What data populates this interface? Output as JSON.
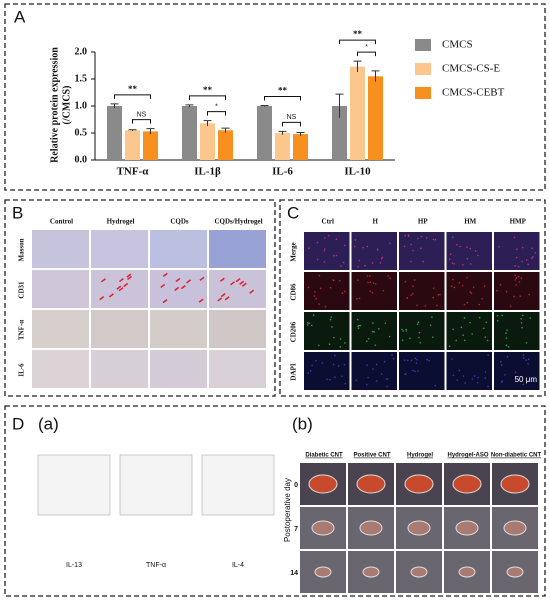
{
  "chart_data": {
    "type": "bar",
    "panel_label": "A",
    "y_label": [
      "Relative protein expression",
      "(/CMCS)"
    ],
    "categories": [
      "TNF-α",
      "IL-1β",
      "IL-6",
      "IL-10"
    ],
    "series": [
      {
        "name": "CMCS",
        "color": "#8a8a8a",
        "values": [
          1.0,
          1.0,
          1.0,
          1.0
        ],
        "errors": [
          0.04,
          0.02,
          0.01,
          0.22
        ]
      },
      {
        "name": "CMCS-CS-E",
        "color": "#fbc78c",
        "values": [
          0.55,
          0.68,
          0.5,
          1.73
        ],
        "errors": [
          0.01,
          0.05,
          0.03,
          0.1
        ]
      },
      {
        "name": "CMCS-CEBT",
        "color": "#f7901e",
        "values": [
          0.53,
          0.55,
          0.48,
          1.55
        ],
        "errors": [
          0.05,
          0.04,
          0.03,
          0.1
        ]
      }
    ],
    "ylim": [
      0,
      2.0
    ],
    "yticks": [
      {
        "value": 0,
        "label": "0.0"
      },
      {
        "value": 0.5,
        "label": "0.5"
      },
      {
        "value": 1,
        "label": "1.0"
      },
      {
        "value": 1.5,
        "label": "1.5"
      },
      {
        "value": 2,
        "label": "2.0"
      }
    ],
    "significance": [
      [
        "**",
        "NS"
      ],
      [
        "**",
        "*"
      ],
      [
        "**",
        "NS"
      ],
      [
        "**",
        "*"
      ]
    ]
  },
  "panel_b": {
    "label": "B",
    "columns": [
      "Control",
      "Hydrogel",
      "CQDs",
      "CQDs/Hydrogel"
    ],
    "rows": [
      "Masson",
      "CD31",
      "TNF-α",
      "IL-6"
    ]
  },
  "panel_c": {
    "label": "C",
    "columns": [
      "Ctrl",
      "H",
      "HP",
      "HM",
      "HMP"
    ],
    "rows": [
      "Merge",
      "CD86",
      "CD206",
      "DAPI"
    ],
    "scale_bar": "50 μm"
  },
  "panel_d": {
    "label": "D",
    "part_a": {
      "label": "(a)",
      "charts": [
        "IL-13",
        "TNF-α",
        "IL-4"
      ]
    },
    "part_b": {
      "label": "(b)",
      "columns": [
        "Diabetic CNT",
        "Positive CNT",
        "Hydrogel",
        "Hydrogel-ASO",
        "Non-diabetic CNT"
      ],
      "rows": [
        "0",
        "7",
        "14"
      ],
      "row_title": "Postoperative day"
    }
  }
}
